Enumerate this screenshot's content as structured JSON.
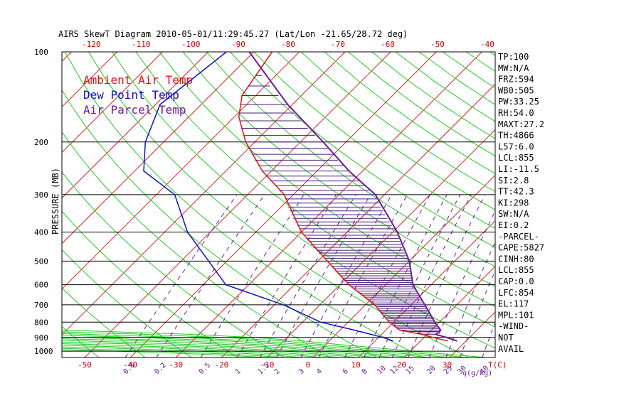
{
  "chart_data": {
    "type": "line",
    "title": "AIRS SkewT Diagram 2010-05-01/11:29:45.27 (Lat/Lon -21.65/28.72 deg)",
    "ylabel": "PRESSURE (MB)",
    "xlabel": "T(C)",
    "mixing_ratio_label": "q(g/kg)",
    "pressure_ticks": [
      100,
      200,
      300,
      400,
      500,
      600,
      700,
      800,
      900,
      1000
    ],
    "pressure_range": [
      100,
      1050
    ],
    "temp_range_bottom": [
      -55,
      40
    ],
    "bottom_ticks": [
      -50,
      -40,
      -30,
      -20,
      -10,
      0,
      10,
      20,
      30
    ],
    "top_ticks": [
      -120,
      -110,
      -100,
      -90,
      -80,
      -70,
      -60,
      -50,
      -40
    ],
    "mixing_ratio_ticks": [
      "0.1",
      "0.2",
      "0.5",
      "1",
      "1.5",
      "2",
      "3",
      "4",
      "6",
      "8",
      "10",
      "12",
      "15",
      "20",
      "25",
      "30",
      "40"
    ],
    "legend": [
      {
        "name": "Ambient Air Temp",
        "color": "#dd1111"
      },
      {
        "name": "Dew Point Temp",
        "color": "#1111cc"
      },
      {
        "name": "Air Parcel Temp",
        "color": "#6a1b9a"
      }
    ],
    "series": [
      {
        "name": "Ambient Air Temp",
        "color": "#dd1111",
        "points": [
          [
            100,
            -76
          ],
          [
            140,
            -73
          ],
          [
            165,
            -69
          ],
          [
            200,
            -62
          ],
          [
            250,
            -52
          ],
          [
            300,
            -42
          ],
          [
            400,
            -30
          ],
          [
            500,
            -18
          ],
          [
            600,
            -8
          ],
          [
            700,
            2
          ],
          [
            800,
            9
          ],
          [
            850,
            13
          ],
          [
            880,
            19
          ],
          [
            900,
            22
          ],
          [
            925,
            26
          ]
        ]
      },
      {
        "name": "Dew Point Temp",
        "color": "#1111cc",
        "points": [
          [
            100,
            -86
          ],
          [
            150,
            -89
          ],
          [
            200,
            -84
          ],
          [
            250,
            -78
          ],
          [
            300,
            -66
          ],
          [
            400,
            -55
          ],
          [
            500,
            -44
          ],
          [
            600,
            -35
          ],
          [
            700,
            -18
          ],
          [
            800,
            -6
          ],
          [
            850,
            3
          ],
          [
            900,
            11
          ],
          [
            925,
            14
          ]
        ]
      },
      {
        "name": "Air Parcel Temp",
        "color": "#6a1b9a",
        "points": [
          [
            100,
            -81
          ],
          [
            150,
            -61
          ],
          [
            200,
            -45
          ],
          [
            250,
            -33
          ],
          [
            300,
            -22
          ],
          [
            400,
            -9
          ],
          [
            500,
            0
          ],
          [
            600,
            6
          ],
          [
            700,
            13
          ],
          [
            800,
            19
          ],
          [
            850,
            22
          ],
          [
            880,
            22
          ],
          [
            900,
            25
          ],
          [
            925,
            28
          ]
        ]
      }
    ],
    "stats": [
      "TP:100",
      "MW:N/A",
      "FRZ:594",
      "WB0:505",
      "PW:33.25",
      "RH:54.0",
      "MAXT:27.2",
      "TH:4866",
      "L57:6.0",
      "LCL:855",
      "LI:-11.5",
      "SI:2.8",
      "TT:42.3",
      "KI:298",
      "SW:N/A",
      "EI:0.2",
      "-PARCEL-",
      "CAPE:5827",
      "CINH:80",
      "LCL:855",
      "CAP:0.0",
      "LFC:854",
      "EL:117",
      "MPL:101",
      "-WIND-",
      "NOT",
      "AVAIL"
    ],
    "grid": true
  }
}
